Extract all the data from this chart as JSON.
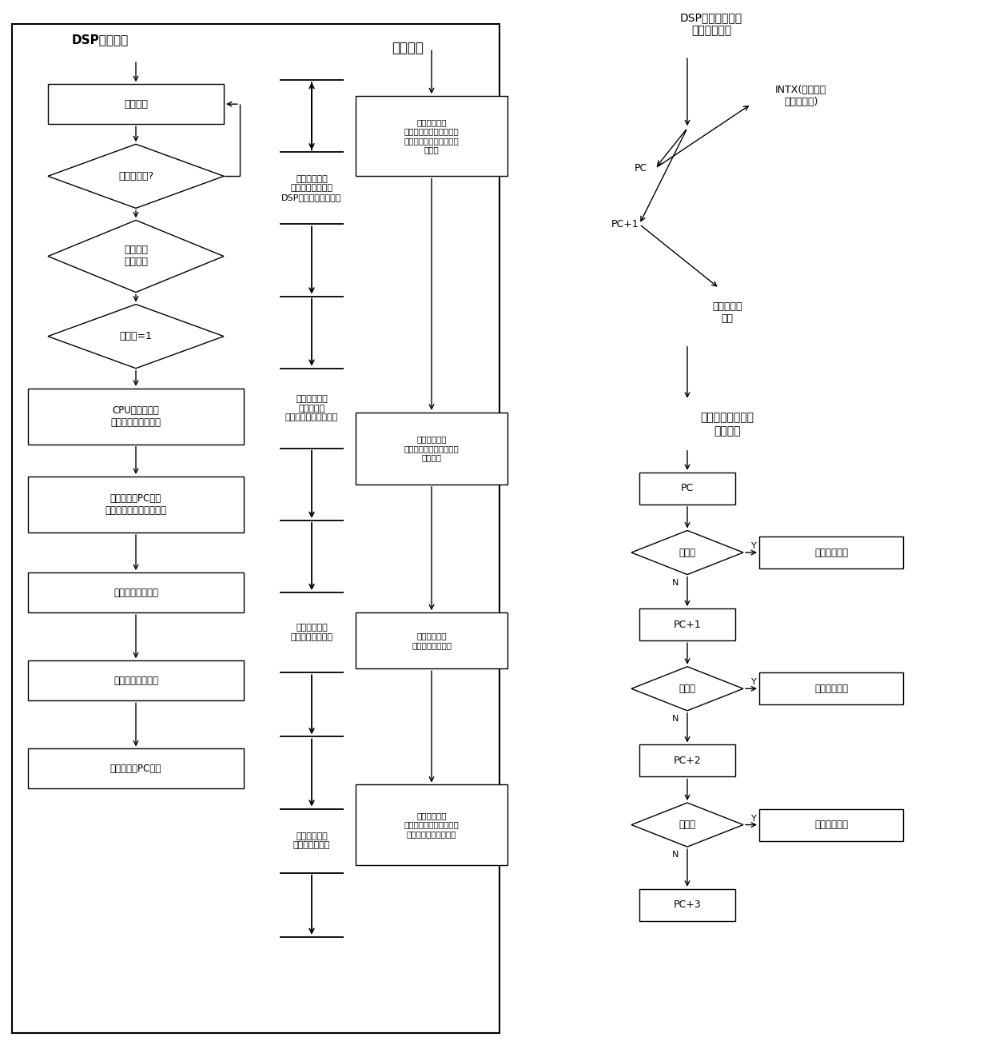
{
  "bg_color": "#ffffff",
  "figsize": [
    12.4,
    13.22
  ],
  "dpi": 100,
  "xlim": [
    0,
    124
  ],
  "ylim": [
    0,
    132
  ]
}
